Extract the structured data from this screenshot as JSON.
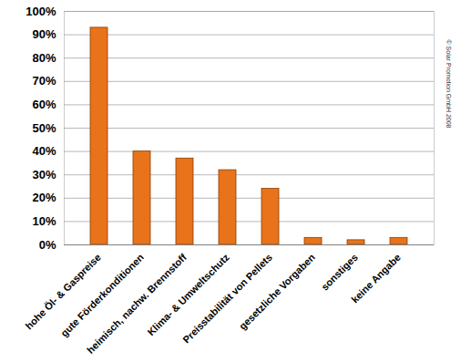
{
  "chart_data": {
    "type": "bar",
    "categories": [
      "hohe Öl- & Gaspreise",
      "gute Förderkonditionen",
      "heimisch, nachw. Brennstoff",
      "Klima- & Umweltschutz",
      "Preisstabilität von Pellets",
      "gesetzliche Vorgaben",
      "sonstiges",
      "keine Angabe"
    ],
    "values": [
      93,
      40,
      37,
      32,
      24,
      3,
      2,
      3
    ],
    "color": "#e8731a",
    "ylim": [
      0,
      100
    ],
    "yticks": [
      {
        "value": 0,
        "label": "0%"
      },
      {
        "value": 10,
        "label": "10%"
      },
      {
        "value": 20,
        "label": "20%"
      },
      {
        "value": 30,
        "label": "30%"
      },
      {
        "value": 40,
        "label": "40%"
      },
      {
        "value": 50,
        "label": "50%"
      },
      {
        "value": 60,
        "label": "60%"
      },
      {
        "value": 70,
        "label": "70%"
      },
      {
        "value": 80,
        "label": "80%"
      },
      {
        "value": 90,
        "label": "90%"
      },
      {
        "value": 100,
        "label": "100%"
      }
    ],
    "grid": true,
    "annotations": [
      "© Solar Promotion GmbH 2008"
    ]
  }
}
